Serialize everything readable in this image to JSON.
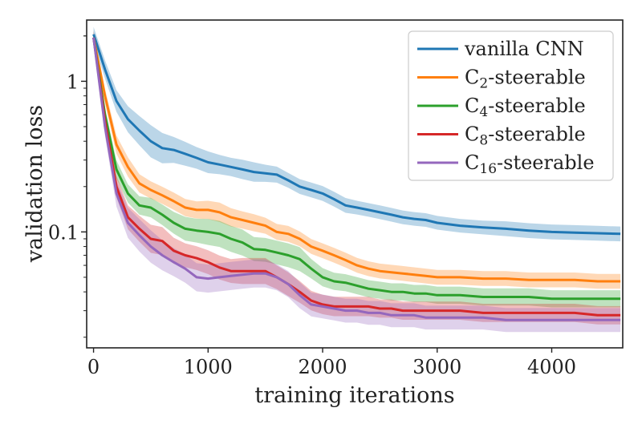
{
  "chart_data": {
    "type": "line",
    "title": "",
    "xlabel": "training iterations",
    "ylabel": "validation loss",
    "xlim": [
      -60,
      4620
    ],
    "ylim": [
      0.017,
      2.55
    ],
    "yscale": "log",
    "grid": false,
    "legend_position": "top-right",
    "x_ticks": [
      0,
      1000,
      2000,
      3000,
      4000
    ],
    "x_tick_labels": [
      "0",
      "1000",
      "2000",
      "3000",
      "4000"
    ],
    "y_ticks": [
      0.1,
      1
    ],
    "y_tick_labels": [
      "0.1",
      "1"
    ],
    "x": [
      0,
      100,
      200,
      300,
      400,
      500,
      600,
      700,
      800,
      900,
      1000,
      1100,
      1200,
      1300,
      1400,
      1500,
      1600,
      1700,
      1800,
      1900,
      2000,
      2100,
      2200,
      2300,
      2400,
      2500,
      2600,
      2700,
      2800,
      2900,
      3000,
      3200,
      3400,
      3600,
      3800,
      4000,
      4200,
      4400,
      4600
    ],
    "series": [
      {
        "name": "vanilla CNN",
        "legend_main": "vanilla CNN",
        "legend_sub": "",
        "legend_suffix": "",
        "color": "#1f77b4",
        "values": [
          2.05,
          1.2,
          0.74,
          0.56,
          0.47,
          0.4,
          0.36,
          0.35,
          0.33,
          0.31,
          0.29,
          0.28,
          0.27,
          0.26,
          0.25,
          0.245,
          0.24,
          0.22,
          0.2,
          0.19,
          0.18,
          0.165,
          0.15,
          0.145,
          0.14,
          0.135,
          0.13,
          0.125,
          0.122,
          0.12,
          0.115,
          0.11,
          0.107,
          0.105,
          0.102,
          0.1,
          0.099,
          0.098,
          0.097
        ],
        "band": [
          0.12,
          0.15,
          0.18,
          0.22,
          0.25,
          0.28,
          0.26,
          0.22,
          0.2,
          0.18,
          0.18,
          0.16,
          0.15,
          0.16,
          0.16,
          0.14,
          0.13,
          0.12,
          0.12,
          0.12,
          0.12,
          0.12,
          0.12,
          0.11,
          0.11,
          0.11,
          0.11,
          0.11,
          0.11,
          0.11,
          0.11,
          0.11,
          0.11,
          0.12,
          0.12,
          0.12,
          0.12,
          0.12,
          0.12
        ]
      },
      {
        "name": "C2-steerable",
        "legend_main": "C",
        "legend_sub": "2",
        "legend_suffix": "-steerable",
        "color": "#ff7f0e",
        "values": [
          1.95,
          0.8,
          0.38,
          0.27,
          0.21,
          0.19,
          0.175,
          0.16,
          0.145,
          0.14,
          0.14,
          0.135,
          0.125,
          0.12,
          0.115,
          0.11,
          0.1,
          0.097,
          0.09,
          0.08,
          0.075,
          0.07,
          0.065,
          0.06,
          0.057,
          0.055,
          0.054,
          0.053,
          0.052,
          0.051,
          0.05,
          0.05,
          0.049,
          0.049,
          0.048,
          0.048,
          0.048,
          0.047,
          0.047
        ],
        "band": [
          0.1,
          0.12,
          0.15,
          0.16,
          0.15,
          0.14,
          0.14,
          0.14,
          0.14,
          0.14,
          0.15,
          0.16,
          0.15,
          0.14,
          0.14,
          0.13,
          0.13,
          0.13,
          0.12,
          0.12,
          0.12,
          0.12,
          0.12,
          0.12,
          0.12,
          0.12,
          0.12,
          0.12,
          0.12,
          0.12,
          0.12,
          0.12,
          0.12,
          0.12,
          0.12,
          0.12,
          0.12,
          0.12,
          0.12
        ]
      },
      {
        "name": "C4-steerable",
        "legend_main": "C",
        "legend_sub": "4",
        "legend_suffix": "-steerable",
        "color": "#2ca02c",
        "values": [
          1.95,
          0.6,
          0.26,
          0.18,
          0.15,
          0.145,
          0.13,
          0.115,
          0.105,
          0.102,
          0.1,
          0.097,
          0.09,
          0.085,
          0.077,
          0.076,
          0.073,
          0.07,
          0.066,
          0.057,
          0.05,
          0.047,
          0.046,
          0.044,
          0.042,
          0.041,
          0.04,
          0.04,
          0.039,
          0.039,
          0.038,
          0.038,
          0.037,
          0.037,
          0.037,
          0.036,
          0.036,
          0.036,
          0.036
        ],
        "band": [
          0.1,
          0.12,
          0.15,
          0.15,
          0.15,
          0.16,
          0.17,
          0.18,
          0.2,
          0.2,
          0.22,
          0.22,
          0.22,
          0.22,
          0.2,
          0.2,
          0.2,
          0.2,
          0.2,
          0.16,
          0.15,
          0.14,
          0.14,
          0.14,
          0.14,
          0.14,
          0.14,
          0.14,
          0.14,
          0.14,
          0.14,
          0.14,
          0.14,
          0.14,
          0.14,
          0.14,
          0.14,
          0.14,
          0.14
        ]
      },
      {
        "name": "C8-steerable",
        "legend_main": "C",
        "legend_sub": "8",
        "legend_suffix": "-steerable",
        "color": "#d62728",
        "values": [
          1.95,
          0.55,
          0.2,
          0.125,
          0.105,
          0.09,
          0.087,
          0.075,
          0.07,
          0.067,
          0.063,
          0.058,
          0.055,
          0.055,
          0.055,
          0.055,
          0.05,
          0.045,
          0.04,
          0.035,
          0.033,
          0.032,
          0.032,
          0.032,
          0.032,
          0.031,
          0.031,
          0.03,
          0.03,
          0.03,
          0.03,
          0.03,
          0.029,
          0.029,
          0.029,
          0.029,
          0.029,
          0.028,
          0.028
        ],
        "band": [
          0.1,
          0.12,
          0.18,
          0.2,
          0.22,
          0.24,
          0.24,
          0.22,
          0.2,
          0.2,
          0.2,
          0.2,
          0.2,
          0.22,
          0.22,
          0.22,
          0.2,
          0.2,
          0.18,
          0.16,
          0.16,
          0.16,
          0.16,
          0.16,
          0.16,
          0.15,
          0.15,
          0.15,
          0.15,
          0.15,
          0.15,
          0.15,
          0.15,
          0.15,
          0.15,
          0.15,
          0.15,
          0.15,
          0.15
        ]
      },
      {
        "name": "C16-steerable",
        "legend_main": "C",
        "legend_sub": "16",
        "legend_suffix": "-steerable",
        "color": "#9467bd",
        "values": [
          1.95,
          0.5,
          0.18,
          0.115,
          0.095,
          0.08,
          0.07,
          0.063,
          0.057,
          0.05,
          0.049,
          0.05,
          0.051,
          0.052,
          0.053,
          0.053,
          0.05,
          0.045,
          0.038,
          0.033,
          0.032,
          0.031,
          0.03,
          0.03,
          0.029,
          0.029,
          0.028,
          0.028,
          0.028,
          0.027,
          0.027,
          0.027,
          0.027,
          0.026,
          0.026,
          0.026,
          0.026,
          0.026,
          0.026
        ],
        "band": [
          0.12,
          0.15,
          0.22,
          0.26,
          0.28,
          0.28,
          0.26,
          0.24,
          0.24,
          0.24,
          0.24,
          0.24,
          0.24,
          0.24,
          0.24,
          0.24,
          0.22,
          0.22,
          0.22,
          0.2,
          0.2,
          0.2,
          0.2,
          0.2,
          0.2,
          0.2,
          0.2,
          0.2,
          0.2,
          0.2,
          0.2,
          0.2,
          0.2,
          0.2,
          0.2,
          0.2,
          0.2,
          0.2,
          0.2
        ]
      }
    ]
  }
}
